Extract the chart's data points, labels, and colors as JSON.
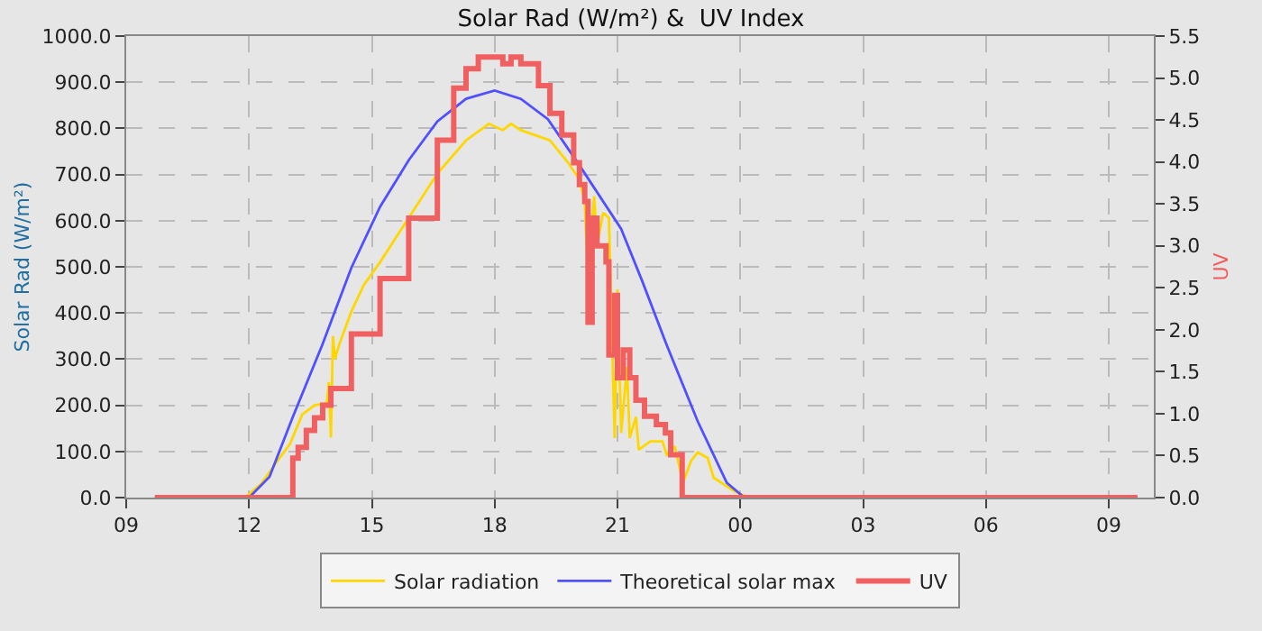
{
  "chart_data": {
    "type": "line",
    "title": "Solar Rad (W/m²) &  UV Index",
    "ylabel": "Solar Rad (W/m²)",
    "y2label": "UV",
    "legend": "bottom",
    "grid": true,
    "marker": "none",
    "xlim": [
      9,
      34.1
    ],
    "xticks": [
      {
        "value": 9,
        "label": "09"
      },
      {
        "value": 12,
        "label": "12"
      },
      {
        "value": 15,
        "label": "15"
      },
      {
        "value": 18,
        "label": "18"
      },
      {
        "value": 21,
        "label": "21"
      },
      {
        "value": 24,
        "label": "00"
      },
      {
        "value": 27,
        "label": "03"
      },
      {
        "value": 30,
        "label": "06"
      },
      {
        "value": 33,
        "label": "09"
      }
    ],
    "ylim": [
      0,
      1000
    ],
    "yticks": [
      {
        "value": 0,
        "label": "0.0"
      },
      {
        "value": 100,
        "label": "100.0"
      },
      {
        "value": 200,
        "label": "200.0"
      },
      {
        "value": 300,
        "label": "300.0"
      },
      {
        "value": 400,
        "label": "400.0"
      },
      {
        "value": 500,
        "label": "500.0"
      },
      {
        "value": 600,
        "label": "600.0"
      },
      {
        "value": 700,
        "label": "700.0"
      },
      {
        "value": 800,
        "label": "800.0"
      },
      {
        "value": 900,
        "label": "900.0"
      },
      {
        "value": 1000,
        "label": "1000.0"
      }
    ],
    "y2lim": [
      0,
      5.5
    ],
    "y2ticks": [
      {
        "value": 0,
        "label": "0.0"
      },
      {
        "value": 0.5,
        "label": "0.5"
      },
      {
        "value": 1,
        "label": "1.0"
      },
      {
        "value": 1.5,
        "label": "1.5"
      },
      {
        "value": 2,
        "label": "2.0"
      },
      {
        "value": 2.5,
        "label": "2.5"
      },
      {
        "value": 3,
        "label": "3.0"
      },
      {
        "value": 3.5,
        "label": "3.5"
      },
      {
        "value": 4,
        "label": "4.0"
      },
      {
        "value": 4.5,
        "label": "4.5"
      },
      {
        "value": 5,
        "label": "5.0"
      },
      {
        "value": 5.5,
        "label": "5.5"
      }
    ],
    "series": [
      {
        "name": "Solar radiation",
        "color": "#ffd700",
        "x": [
          9.7,
          11.9,
          12.3,
          12.7,
          13.0,
          13.3,
          13.6,
          13.9,
          13.95,
          14.0,
          14.05,
          14.1,
          14.2,
          14.5,
          14.8,
          15.2,
          15.9,
          16.6,
          17.3,
          17.86,
          18.2,
          18.4,
          18.64,
          19.35,
          19.8,
          20.07,
          20.2,
          20.28,
          20.43,
          20.5,
          20.65,
          20.79,
          20.93,
          21.0,
          21.09,
          21.23,
          21.3,
          21.45,
          21.52,
          21.8,
          22.1,
          22.2,
          22.4,
          22.6,
          22.8,
          22.96,
          23.2,
          23.35,
          23.85,
          24.2,
          33.7
        ],
        "values": [
          0,
          0,
          30,
          80,
          116,
          180,
          200,
          205,
          250,
          130,
          350,
          300,
          331,
          403,
          460,
          510,
          606,
          702,
          774,
          810,
          796,
          810,
          796,
          774,
          725,
          689,
          641,
          474,
          653,
          546,
          617,
          606,
          129,
          451,
          140,
          283,
          129,
          175,
          104,
          122,
          122,
          93,
          111,
          32,
          80,
          98,
          86,
          43,
          14,
          0,
          0
        ]
      },
      {
        "name": "Theoretical solar max",
        "color": "#5050ff",
        "x": [
          9.7,
          12.0,
          12.5,
          13.07,
          13.79,
          14.5,
          15.2,
          15.9,
          16.6,
          17.3,
          18.0,
          18.64,
          19.3,
          20.07,
          21.09,
          21.6,
          22.2,
          22.96,
          23.67,
          24.1,
          33.7
        ],
        "values": [
          0,
          0,
          45,
          175,
          331,
          498,
          630,
          731,
          815,
          864,
          882,
          864,
          820,
          720,
          582,
          470,
          331,
          165,
          32,
          0,
          0
        ]
      },
      {
        "name": "UV",
        "color": "#f06060",
        "type": "step",
        "axis": "y2",
        "x": [
          9.7,
          13.07,
          13.2,
          13.4,
          13.6,
          13.8,
          14.0,
          14.5,
          15.2,
          15.9,
          16.6,
          17.0,
          17.3,
          17.6,
          18.2,
          18.4,
          18.64,
          19.07,
          19.35,
          19.64,
          19.93,
          20.07,
          20.2,
          20.28,
          20.38,
          20.5,
          20.72,
          20.79,
          20.93,
          21.0,
          21.14,
          21.3,
          21.45,
          21.66,
          21.95,
          22.17,
          22.3,
          22.58,
          33.7
        ],
        "values": [
          0,
          0.47,
          0.6,
          0.8,
          0.95,
          1.1,
          1.3,
          1.95,
          2.61,
          3.33,
          4.26,
          4.88,
          5.11,
          5.25,
          5.17,
          5.25,
          5.17,
          4.91,
          4.58,
          4.32,
          3.99,
          3.73,
          3.53,
          2.09,
          3.33,
          3.0,
          2.81,
          1.7,
          2.41,
          1.43,
          1.76,
          1.43,
          1.16,
          0.97,
          0.87,
          0.77,
          0.51,
          0,
          0
        ]
      }
    ]
  }
}
